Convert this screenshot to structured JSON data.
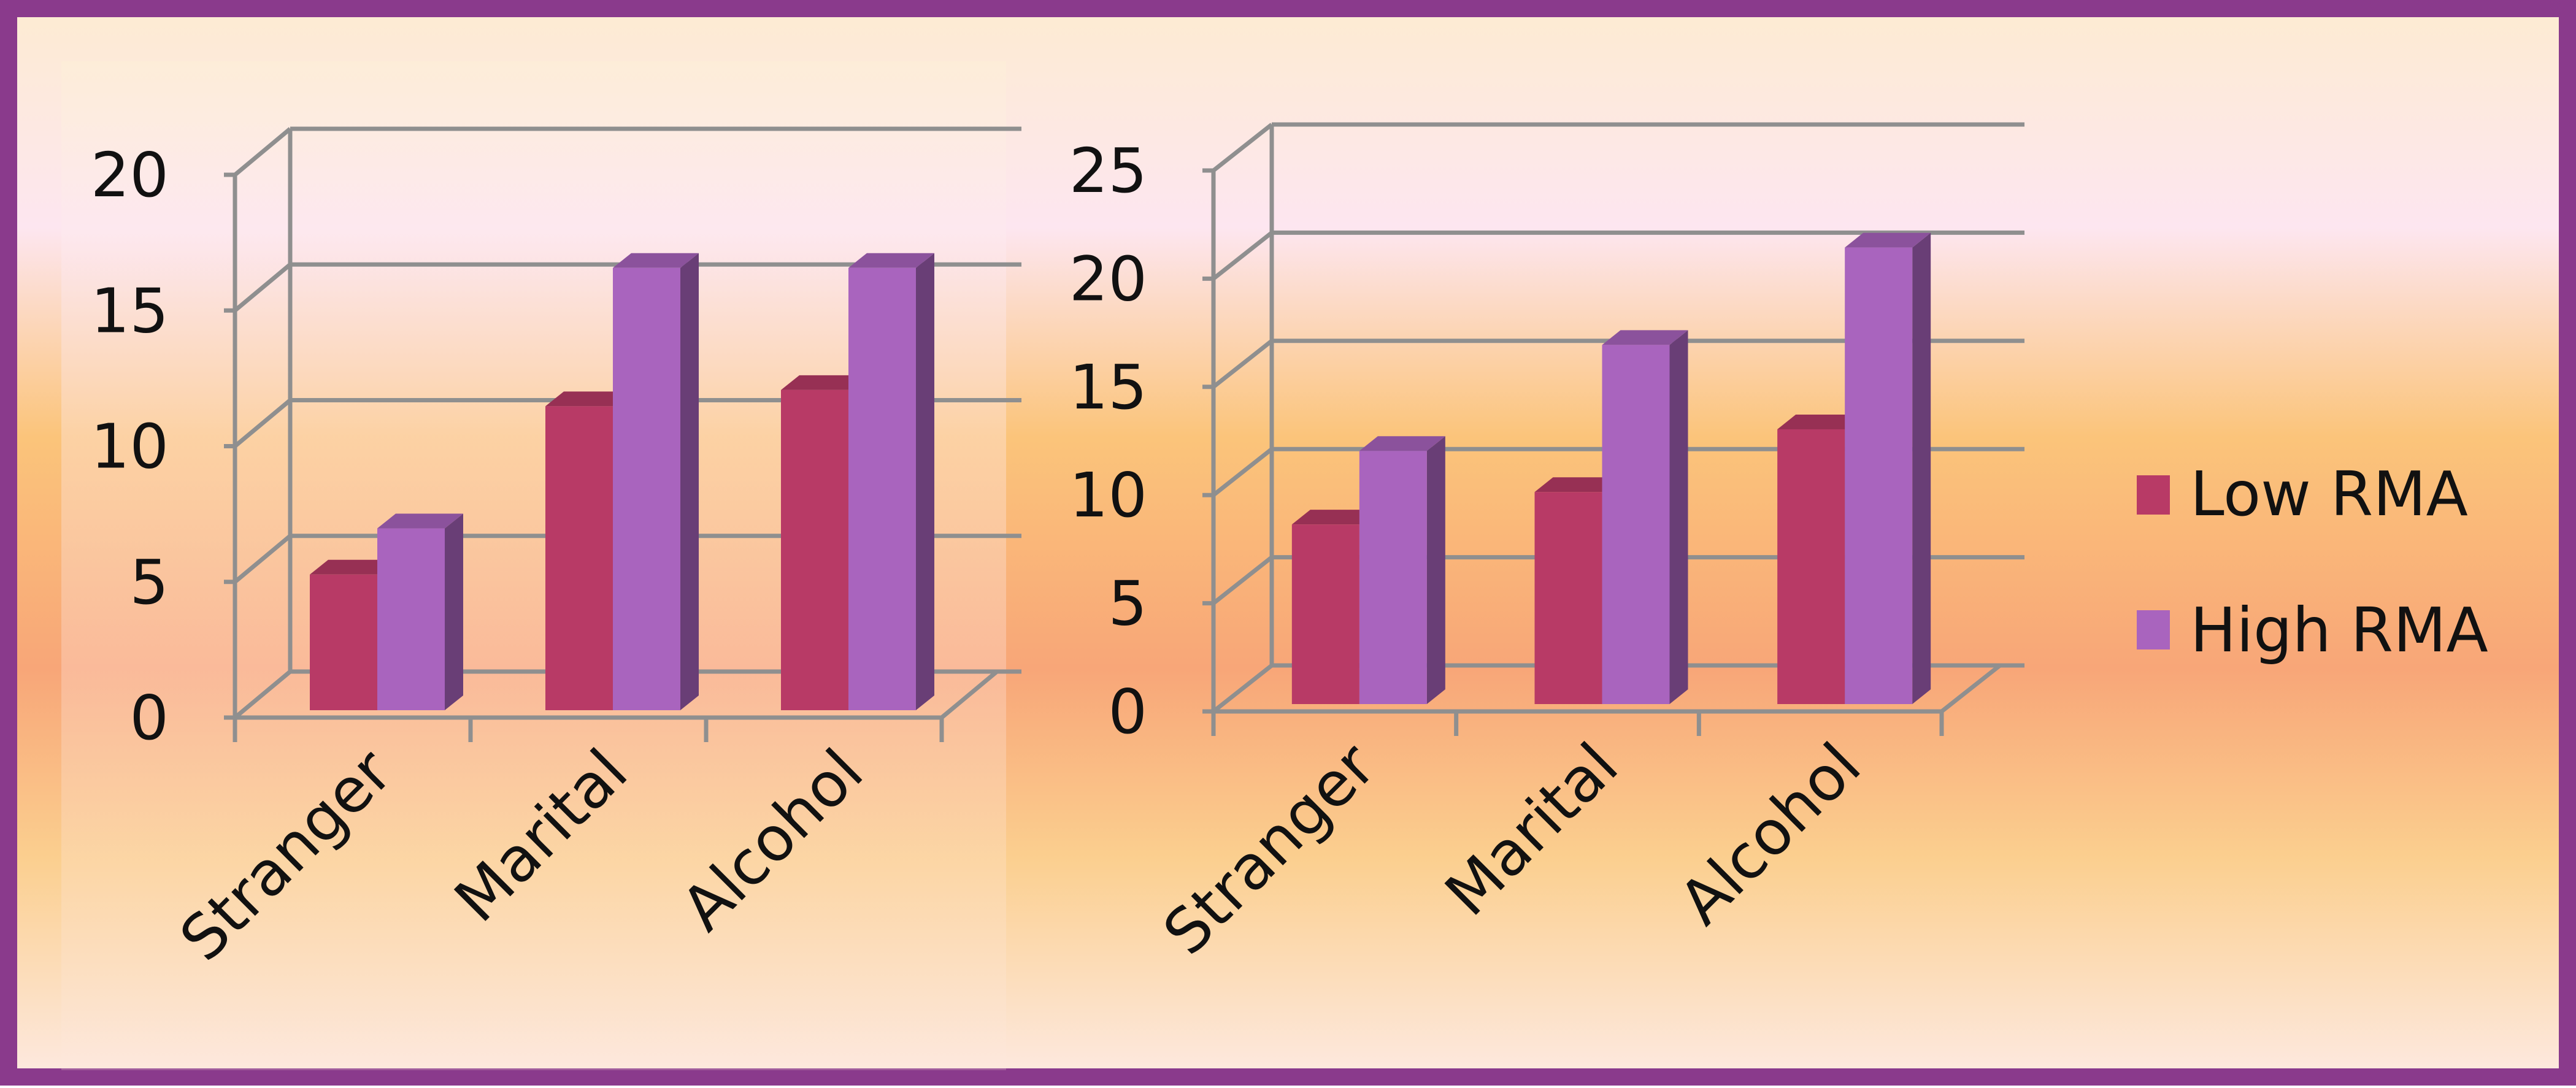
{
  "colors": {
    "frame": "#8a3a8c",
    "low_rma": "#b83a66",
    "high_rma": "#a964be",
    "grid": "#8f8f8f"
  },
  "legend": {
    "placement": "right",
    "items": [
      {
        "label": "Low RMA",
        "color": "#b83a66"
      },
      {
        "label": "High RMA",
        "color": "#a964be"
      }
    ]
  },
  "chart_data": [
    {
      "type": "bar",
      "style": "3d-clustered-column",
      "title": "",
      "xlabel": "",
      "ylabel": "",
      "categories": [
        "Stranger",
        "Marital",
        "Alcohol"
      ],
      "series": [
        {
          "name": "Low RMA",
          "values": [
            5,
            11.2,
            11.8
          ]
        },
        {
          "name": "High RMA",
          "values": [
            6.7,
            16.3,
            16.3
          ]
        }
      ],
      "ylim": [
        0,
        20
      ],
      "yticks": [
        0,
        5,
        10,
        15,
        20
      ],
      "grid": true
    },
    {
      "type": "bar",
      "style": "3d-clustered-column",
      "title": "",
      "xlabel": "",
      "ylabel": "",
      "categories": [
        "Stranger",
        "Marital",
        "Alcohol"
      ],
      "series": [
        {
          "name": "Low RMA",
          "values": [
            8.3,
            9.8,
            12.7
          ]
        },
        {
          "name": "High RMA",
          "values": [
            11.7,
            16.6,
            21.1
          ]
        }
      ],
      "ylim": [
        0,
        25
      ],
      "yticks": [
        0,
        5,
        10,
        15,
        20,
        25
      ],
      "grid": true
    }
  ]
}
